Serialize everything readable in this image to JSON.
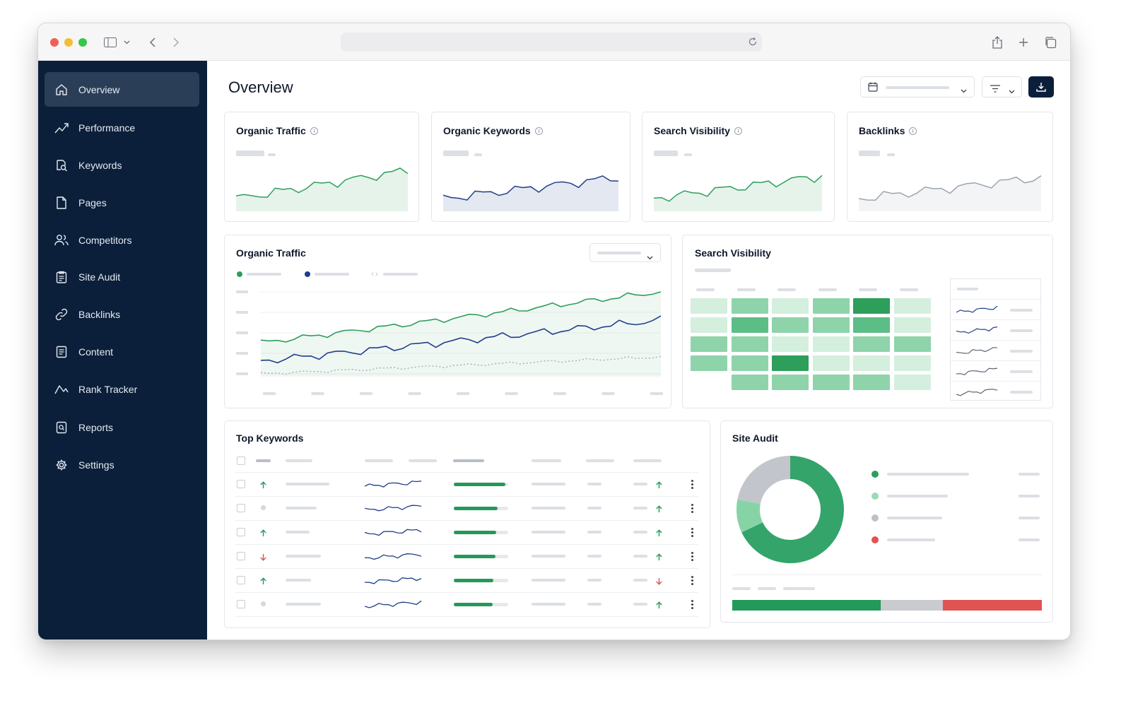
{
  "browser": {
    "url": ""
  },
  "sidebar": {
    "items": [
      {
        "label": "Overview",
        "icon": "home-icon"
      },
      {
        "label": "Performance",
        "icon": "trend-icon"
      },
      {
        "label": "Keywords",
        "icon": "keyword-search-icon"
      },
      {
        "label": "Pages",
        "icon": "page-icon"
      },
      {
        "label": "Competitors",
        "icon": "users-icon"
      },
      {
        "label": "Site Audit",
        "icon": "clipboard-icon"
      },
      {
        "label": "Backlinks",
        "icon": "link-icon"
      },
      {
        "label": "Content",
        "icon": "document-icon"
      },
      {
        "label": "Rank Tracker",
        "icon": "rank-line-icon"
      },
      {
        "label": "Reports",
        "icon": "report-icon"
      },
      {
        "label": "Settings",
        "icon": "gear-icon"
      }
    ]
  },
  "header": {
    "title": "Overview"
  },
  "kpis": [
    {
      "title": "Organic Traffic",
      "color": "#2e9e5b"
    },
    {
      "title": "Organic Keywords",
      "color": "#1e3f8a"
    },
    {
      "title": "Search Visibility",
      "color": "#2e9e5b"
    },
    {
      "title": "Backlinks",
      "color": "#9ca3af"
    }
  ],
  "traffic_chart": {
    "title": "Organic Traffic"
  },
  "visibility": {
    "title": "Search Visibility"
  },
  "keywords": {
    "title": "Top Keywords",
    "rows": [
      {
        "trend": "up",
        "fill": 0.95,
        "change": "up"
      },
      {
        "trend": "neutral",
        "fill": 0.8,
        "change": "up"
      },
      {
        "trend": "up",
        "fill": 0.78,
        "change": "up"
      },
      {
        "trend": "down",
        "fill": 0.76,
        "change": "up"
      },
      {
        "trend": "up",
        "fill": 0.73,
        "change": "down"
      },
      {
        "trend": "neutral",
        "fill": 0.71,
        "change": "up"
      }
    ]
  },
  "site_audit": {
    "title": "Site Audit",
    "donut": [
      0.68,
      0.1,
      0.22
    ],
    "donut_colors": [
      "#34a46a",
      "#86d4a6",
      "#c2c5cb"
    ],
    "legend_colors": [
      "#2aa05f",
      "#98dbb4",
      "#bcc0c6",
      "#e25252"
    ],
    "bar": [
      0.48,
      0.2,
      0.32
    ],
    "bar_colors": [
      "#23995a",
      "#c9cbcf",
      "#e05353"
    ]
  },
  "colors": {
    "sidebar": "#0b1f3a",
    "accent_green": "#2e9e5b",
    "accent_navy": "#1e3f8a",
    "download_button": "#0b1f3a"
  }
}
